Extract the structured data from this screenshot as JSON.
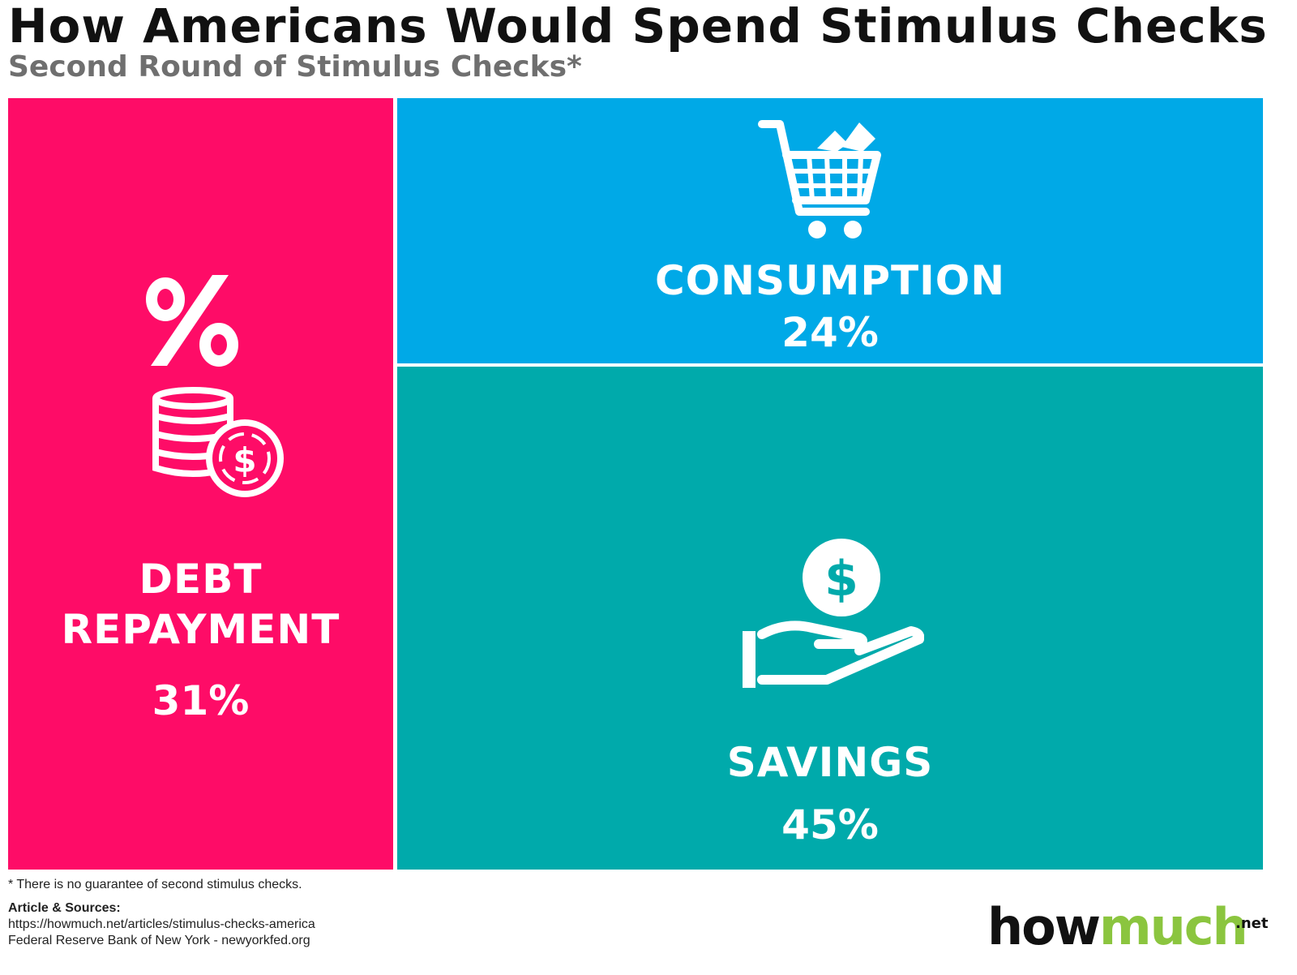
{
  "header": {
    "title": "How Americans Would Spend Stimulus Checks",
    "subtitle": "Second Round of Stimulus Checks*"
  },
  "chart_data": {
    "type": "treemap",
    "title": "How Americans Would Spend Stimulus Checks",
    "subtitle": "Second Round of Stimulus Checks*",
    "unit": "%",
    "categories": [
      "DEBT REPAYMENT",
      "CONSUMPTION",
      "SAVINGS"
    ],
    "values": [
      31,
      24,
      45
    ],
    "tiles": [
      {
        "label_lines": [
          "DEBT",
          "REPAYMENT"
        ],
        "value_text": "31%",
        "value": 31,
        "color": "#fe0c67",
        "icon": "percent-coins-icon"
      },
      {
        "label_lines": [
          "CONSUMPTION"
        ],
        "value_text": "24%",
        "value": 24,
        "color": "#00a9e7",
        "icon": "shopping-cart-icon"
      },
      {
        "label_lines": [
          "SAVINGS"
        ],
        "value_text": "45%",
        "value": 45,
        "color": "#00aaab",
        "icon": "hand-coin-icon"
      }
    ]
  },
  "footer": {
    "note": "* There is no guarantee of second stimulus checks.",
    "sources_title": "Article & Sources:",
    "source_1": "https://howmuch.net/articles/stimulus-checks-america",
    "source_2": "Federal Reserve Bank of New York - newyorkfed.org"
  },
  "logo": {
    "part_1": "how",
    "part_2": "much",
    "suffix": ".net",
    "color_1": "#111111",
    "color_2": "#8bc53f"
  }
}
